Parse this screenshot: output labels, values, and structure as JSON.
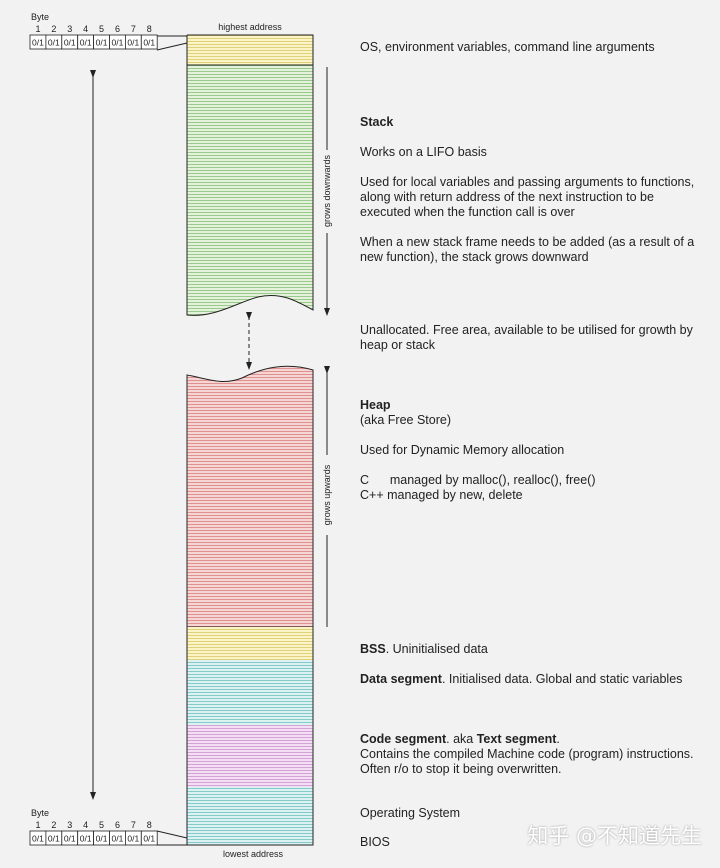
{
  "top_byte": {
    "label": "Byte",
    "numbers": [
      "1",
      "2",
      "3",
      "4",
      "5",
      "6",
      "7",
      "8"
    ],
    "cells": [
      "0/1",
      "0/1",
      "0/1",
      "0/1",
      "0/1",
      "0/1",
      "0/1",
      "0/1"
    ]
  },
  "bottom_byte": {
    "label": "Byte",
    "numbers": [
      "1",
      "2",
      "3",
      "4",
      "5",
      "6",
      "7",
      "8"
    ],
    "cells": [
      "0/1",
      "0/1",
      "0/1",
      "0/1",
      "0/1",
      "0/1",
      "0/1",
      "0/1"
    ]
  },
  "addresses": {
    "highest": "highest address",
    "lowest": "lowest address"
  },
  "growth": {
    "down": "grows downwards",
    "up": "grows upwards"
  },
  "descriptions": {
    "os_env": "OS, environment variables, command line arguments",
    "stack": {
      "title": "Stack",
      "lines": [
        "Works on a LIFO basis",
        "Used for local variables and passing arguments to functions, along with return address of the next instruction to be executed when the function call is over",
        "When a new stack frame needs to be added (as a result of a new function), the stack grows downward"
      ]
    },
    "unallocated": "Unallocated. Free area, available to be utilised for growth by heap or stack",
    "heap": {
      "title": "Heap",
      "lines": [
        "(aka Free Store)",
        "Used for Dynamic Memory allocation",
        "C      managed by malloc(), realloc(), free()",
        "C++ managed by new, delete"
      ]
    },
    "bss": {
      "title": "BSS",
      "text": ". Uninitialised data"
    },
    "data": {
      "title": "Data segment",
      "text": ". Initialised data. Global and static variables"
    },
    "code": {
      "title": "Code segment",
      "text": ". aka ",
      "title2": "Text segment",
      "end": ".",
      "lines": [
        "Contains the compiled Machine code (program) instructions.",
        "Often r/o to stop it being overwritten."
      ]
    },
    "os": "Operating System",
    "bios": "BIOS"
  },
  "watermark": "知乎 @不知道先生"
}
